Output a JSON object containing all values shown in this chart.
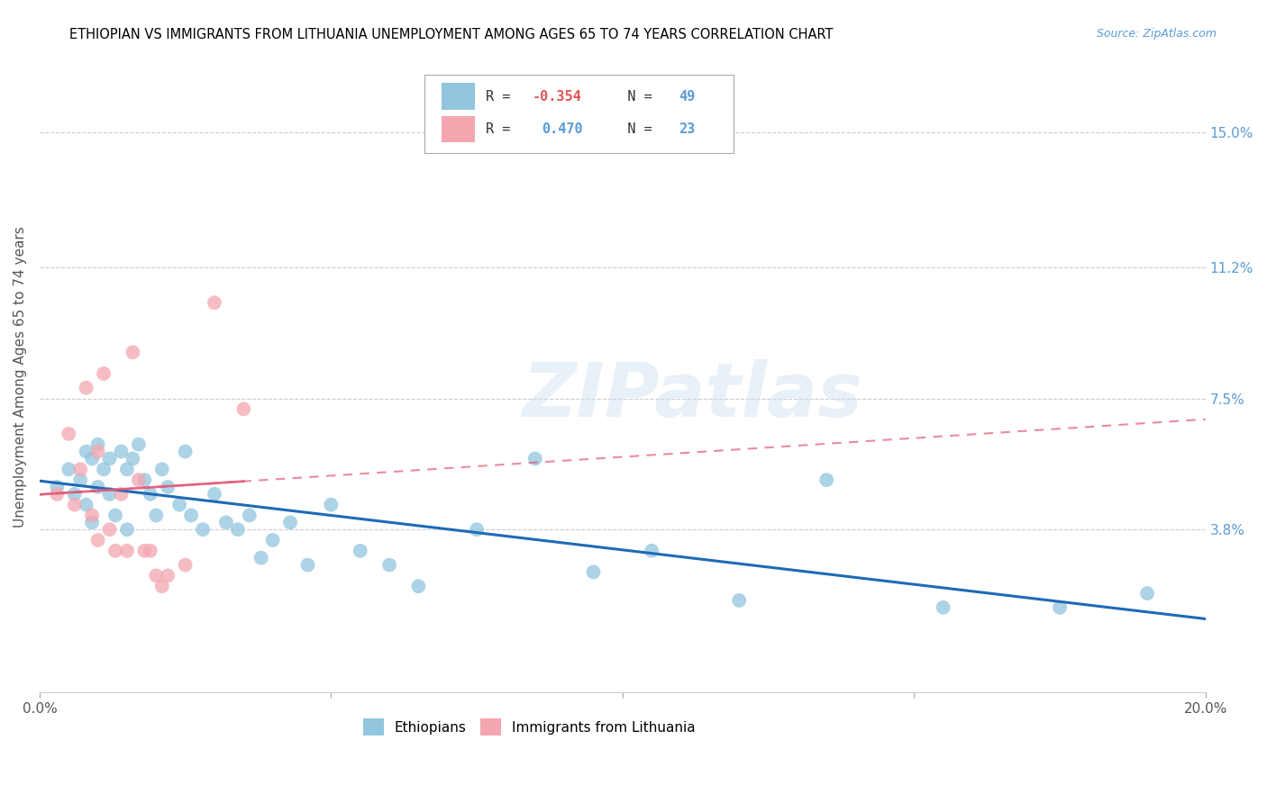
{
  "title": "ETHIOPIAN VS IMMIGRANTS FROM LITHUANIA UNEMPLOYMENT AMONG AGES 65 TO 74 YEARS CORRELATION CHART",
  "source": "Source: ZipAtlas.com",
  "ylabel": "Unemployment Among Ages 65 to 74 years",
  "right_yticks": [
    "15.0%",
    "11.2%",
    "7.5%",
    "3.8%"
  ],
  "right_ytick_vals": [
    0.15,
    0.112,
    0.075,
    0.038
  ],
  "xmin": 0.0,
  "xmax": 0.2,
  "ymin": -0.008,
  "ymax": 0.17,
  "watermark": "ZIPatlas",
  "blue_color": "#92c5de",
  "pink_color": "#f4a6b0",
  "trendline_blue": "#1f6ab5",
  "trendline_pink": "#e05a78",
  "ethiopian_x": [
    0.003,
    0.005,
    0.006,
    0.007,
    0.008,
    0.008,
    0.009,
    0.009,
    0.01,
    0.01,
    0.011,
    0.012,
    0.012,
    0.013,
    0.014,
    0.015,
    0.015,
    0.016,
    0.017,
    0.018,
    0.019,
    0.02,
    0.021,
    0.022,
    0.024,
    0.025,
    0.026,
    0.028,
    0.03,
    0.032,
    0.034,
    0.036,
    0.038,
    0.04,
    0.043,
    0.046,
    0.05,
    0.055,
    0.06,
    0.065,
    0.075,
    0.085,
    0.095,
    0.105,
    0.12,
    0.135,
    0.155,
    0.175,
    0.19
  ],
  "ethiopian_y": [
    0.05,
    0.055,
    0.048,
    0.052,
    0.06,
    0.045,
    0.058,
    0.04,
    0.062,
    0.05,
    0.055,
    0.048,
    0.058,
    0.042,
    0.06,
    0.055,
    0.038,
    0.058,
    0.062,
    0.052,
    0.048,
    0.042,
    0.055,
    0.05,
    0.045,
    0.06,
    0.042,
    0.038,
    0.048,
    0.04,
    0.038,
    0.042,
    0.03,
    0.035,
    0.04,
    0.028,
    0.045,
    0.032,
    0.028,
    0.022,
    0.038,
    0.058,
    0.026,
    0.032,
    0.018,
    0.052,
    0.016,
    0.016,
    0.02
  ],
  "lithuania_x": [
    0.003,
    0.005,
    0.006,
    0.007,
    0.008,
    0.009,
    0.01,
    0.01,
    0.011,
    0.012,
    0.013,
    0.014,
    0.015,
    0.016,
    0.017,
    0.018,
    0.019,
    0.02,
    0.021,
    0.022,
    0.025,
    0.03,
    0.035
  ],
  "lithuania_y": [
    0.048,
    0.065,
    0.045,
    0.055,
    0.078,
    0.042,
    0.06,
    0.035,
    0.082,
    0.038,
    0.032,
    0.048,
    0.032,
    0.088,
    0.052,
    0.032,
    0.032,
    0.025,
    0.022,
    0.025,
    0.028,
    0.102,
    0.072
  ],
  "pink_trend_x_start": 0.0,
  "pink_trend_x_end": 0.2,
  "blue_r": "-0.354",
  "blue_n": "49",
  "pink_r": "0.470",
  "pink_n": "23"
}
